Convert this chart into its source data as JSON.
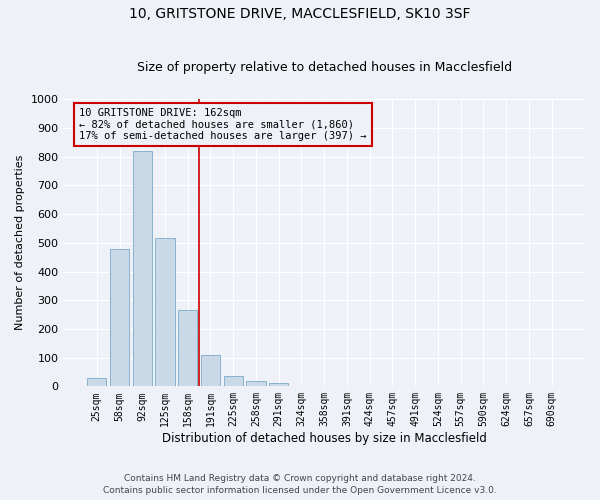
{
  "title1": "10, GRITSTONE DRIVE, MACCLESFIELD, SK10 3SF",
  "title2": "Size of property relative to detached houses in Macclesfield",
  "xlabel": "Distribution of detached houses by size in Macclesfield",
  "ylabel": "Number of detached properties",
  "categories": [
    "25sqm",
    "58sqm",
    "92sqm",
    "125sqm",
    "158sqm",
    "191sqm",
    "225sqm",
    "258sqm",
    "291sqm",
    "324sqm",
    "358sqm",
    "391sqm",
    "424sqm",
    "457sqm",
    "491sqm",
    "524sqm",
    "557sqm",
    "590sqm",
    "624sqm",
    "657sqm",
    "690sqm"
  ],
  "values": [
    30,
    478,
    820,
    515,
    265,
    110,
    35,
    20,
    10,
    0,
    0,
    0,
    0,
    0,
    0,
    0,
    0,
    0,
    0,
    0,
    0
  ],
  "bar_color": "#c9d9e8",
  "bar_edge_color": "#7aaac8",
  "vline_x": 4.5,
  "vline_color": "#cc0000",
  "annotation_text": "10 GRITSTONE DRIVE: 162sqm\n← 82% of detached houses are smaller (1,860)\n17% of semi-detached houses are larger (397) →",
  "annotation_box_color": "#cc0000",
  "ylim": [
    0,
    1000
  ],
  "yticks": [
    0,
    100,
    200,
    300,
    400,
    500,
    600,
    700,
    800,
    900,
    1000
  ],
  "footer1": "Contains HM Land Registry data © Crown copyright and database right 2024.",
  "footer2": "Contains public sector information licensed under the Open Government Licence v3.0.",
  "bg_color": "#eef2f8",
  "grid_color": "#ffffff",
  "title_fontsize": 10,
  "subtitle_fontsize": 9,
  "annotation_fontsize": 7.5,
  "ylabel_fontsize": 8,
  "xlabel_fontsize": 8.5,
  "footer_fontsize": 6.5
}
